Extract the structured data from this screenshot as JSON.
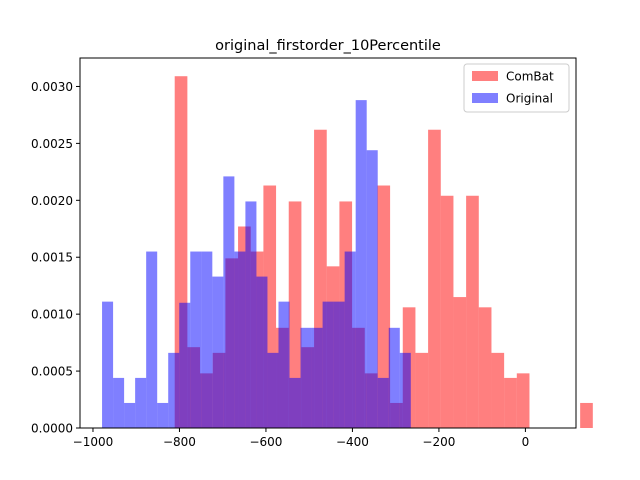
{
  "chart_data": {
    "type": "bar",
    "title": "original_firstorder_10Percentile",
    "xlabel": "",
    "ylabel": "",
    "xlim": [
      -1030,
      117
    ],
    "ylim": [
      0,
      0.00325
    ],
    "xticks": [
      -1000,
      -800,
      -600,
      -400,
      -200,
      0
    ],
    "xtick_labels": [
      "−1000",
      "−800",
      "−600",
      "−400",
      "−200",
      "0"
    ],
    "yticks": [
      0,
      0.0005,
      0.001,
      0.0015,
      0.002,
      0.0025,
      0.003
    ],
    "ytick_labels": [
      "0.0000",
      "0.0005",
      "0.0010",
      "0.0015",
      "0.0020",
      "0.0025",
      "0.0030"
    ],
    "legend": {
      "placement": "upper right"
    },
    "series": [
      {
        "name": "ComBat",
        "color": "#ff0000",
        "alpha": 0.5,
        "bin_start": -811,
        "bin_width": 29.3,
        "values": [
          0.00309,
          0.00071,
          0.00048,
          0.00066,
          0.00149,
          0.00177,
          0.00155,
          0.00213,
          0.00088,
          0.00199,
          0.00071,
          0.00262,
          0.00142,
          0.00199,
          0.00088,
          0.00048,
          0.00213,
          0.00022,
          0.00106,
          0.00066,
          0.00262,
          0.00204,
          0.00115,
          0.00204,
          0.00106,
          0.00066,
          0.00044,
          0.00048,
          0.0,
          0.0,
          0.0,
          0.0,
          0.00022
        ]
      },
      {
        "name": "Original",
        "color": "#0000ff",
        "alpha": 0.5,
        "bin_start": -979,
        "bin_width": 25.5,
        "values": [
          0.00111,
          0.00044,
          0.00022,
          0.00044,
          0.00155,
          0.00022,
          0.00066,
          0.0011,
          0.00155,
          0.00155,
          0.00133,
          0.00221,
          0.00155,
          0.00199,
          0.00133,
          0.00066,
          0.00111,
          0.00044,
          0.00088,
          0.00088,
          0.00111,
          0.00111,
          0.00155,
          0.00288,
          0.00244,
          0.00044,
          0.00088,
          0.00066
        ]
      }
    ]
  }
}
